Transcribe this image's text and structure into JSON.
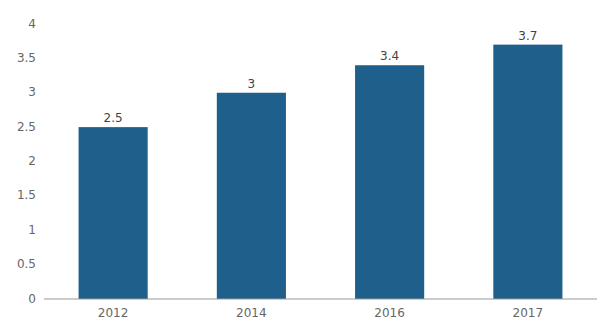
{
  "chart_data": {
    "type": "bar",
    "categories": [
      "2012",
      "2014",
      "2016",
      "2017"
    ],
    "values": [
      2.5,
      3.0,
      3.4,
      3.7
    ],
    "color": "#1f5f8b",
    "ylim": [
      0,
      4
    ],
    "yticks": [
      0,
      0.5,
      1,
      1.5,
      2,
      2.5,
      3,
      3.5,
      4
    ],
    "grid": false,
    "data_labels": true
  }
}
